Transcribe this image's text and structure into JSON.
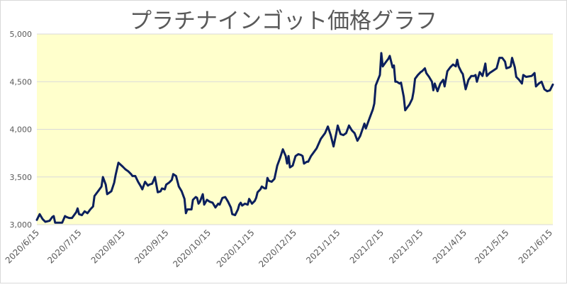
{
  "chart_data": {
    "type": "line",
    "title": "プラチナインゴット価格グラフ",
    "xlabel": "",
    "ylabel": "",
    "ylim": [
      3000,
      5000
    ],
    "y_ticks": [
      3000,
      3500,
      4000,
      4500,
      5000
    ],
    "y_tick_labels": [
      "3,000",
      "3,500",
      "4,000",
      "4,500",
      "5,000"
    ],
    "x_tick_labels": [
      "2020/6/15",
      "2020/7/15",
      "2020/8/15",
      "2020/9/15",
      "2020/10/15",
      "2020/11/15",
      "2020/12/15",
      "2021/1/15",
      "2021/2/15",
      "2021/3/15",
      "2021/4/15",
      "2021/5/15",
      "2021/6/15"
    ],
    "grid": true,
    "plot_background": "#ffffcc",
    "line_color": "#0b1f5c",
    "series": [
      {
        "values": [
          [
            "2020-06-15",
            3050
          ],
          [
            "2020-06-17",
            3110
          ],
          [
            "2020-06-19",
            3060
          ],
          [
            "2020-06-21",
            3030
          ],
          [
            "2020-06-24",
            3040
          ],
          [
            "2020-06-26",
            3080
          ],
          [
            "2020-06-27",
            3090
          ],
          [
            "2020-06-28",
            3020
          ],
          [
            "2020-07-03",
            3020
          ],
          [
            "2020-07-05",
            3090
          ],
          [
            "2020-07-06",
            3080
          ],
          [
            "2020-07-08",
            3070
          ],
          [
            "2020-07-10",
            3070
          ],
          [
            "2020-07-13",
            3130
          ],
          [
            "2020-07-14",
            3170
          ],
          [
            "2020-07-15",
            3110
          ],
          [
            "2020-07-17",
            3100
          ],
          [
            "2020-07-19",
            3140
          ],
          [
            "2020-07-20",
            3130
          ],
          [
            "2020-07-21",
            3120
          ],
          [
            "2020-07-23",
            3160
          ],
          [
            "2020-07-25",
            3190
          ],
          [
            "2020-07-26",
            3300
          ],
          [
            "2020-07-29",
            3360
          ],
          [
            "2020-07-31",
            3400
          ],
          [
            "2020-08-01",
            3500
          ],
          [
            "2020-08-03",
            3420
          ],
          [
            "2020-08-04",
            3320
          ],
          [
            "2020-08-07",
            3350
          ],
          [
            "2020-08-09",
            3440
          ],
          [
            "2020-08-10",
            3520
          ],
          [
            "2020-08-12",
            3650
          ],
          [
            "2020-08-15",
            3610
          ],
          [
            "2020-08-17",
            3580
          ],
          [
            "2020-08-19",
            3560
          ],
          [
            "2020-08-21",
            3530
          ],
          [
            "2020-08-22",
            3510
          ],
          [
            "2020-08-24",
            3510
          ],
          [
            "2020-08-26",
            3450
          ],
          [
            "2020-08-28",
            3400
          ],
          [
            "2020-08-29",
            3370
          ],
          [
            "2020-08-31",
            3450
          ],
          [
            "2020-09-02",
            3410
          ],
          [
            "2020-09-03",
            3420
          ],
          [
            "2020-09-05",
            3430
          ],
          [
            "2020-09-07",
            3500
          ],
          [
            "2020-09-09",
            3340
          ],
          [
            "2020-09-11",
            3350
          ],
          [
            "2020-09-12",
            3380
          ],
          [
            "2020-09-14",
            3370
          ],
          [
            "2020-09-15",
            3420
          ],
          [
            "2020-09-17",
            3440
          ],
          [
            "2020-09-19",
            3470
          ],
          [
            "2020-09-20",
            3530
          ],
          [
            "2020-09-22",
            3510
          ],
          [
            "2020-09-24",
            3400
          ],
          [
            "2020-09-26",
            3350
          ],
          [
            "2020-09-28",
            3270
          ],
          [
            "2020-09-29",
            3120
          ],
          [
            "2020-09-30",
            3160
          ],
          [
            "2020-10-03",
            3160
          ],
          [
            "2020-10-04",
            3260
          ],
          [
            "2020-10-06",
            3290
          ],
          [
            "2020-10-07",
            3280
          ],
          [
            "2020-10-08",
            3220
          ],
          [
            "2020-10-09",
            3240
          ],
          [
            "2020-10-11",
            3320
          ],
          [
            "2020-10-12",
            3210
          ],
          [
            "2020-10-14",
            3260
          ],
          [
            "2020-10-16",
            3240
          ],
          [
            "2020-10-18",
            3230
          ],
          [
            "2020-10-20",
            3180
          ],
          [
            "2020-10-22",
            3220
          ],
          [
            "2020-10-23",
            3210
          ],
          [
            "2020-10-25",
            3280
          ],
          [
            "2020-10-27",
            3290
          ],
          [
            "2020-10-29",
            3240
          ],
          [
            "2020-10-31",
            3180
          ],
          [
            "2020-11-01",
            3110
          ],
          [
            "2020-11-03",
            3100
          ],
          [
            "2020-11-05",
            3160
          ],
          [
            "2020-11-06",
            3210
          ],
          [
            "2020-11-07",
            3230
          ],
          [
            "2020-11-08",
            3200
          ],
          [
            "2020-11-10",
            3220
          ],
          [
            "2020-11-12",
            3210
          ],
          [
            "2020-11-13",
            3270
          ],
          [
            "2020-11-15",
            3220
          ],
          [
            "2020-11-17",
            3250
          ],
          [
            "2020-11-18",
            3280
          ],
          [
            "2020-11-19",
            3340
          ],
          [
            "2020-11-21",
            3370
          ],
          [
            "2020-11-22",
            3400
          ],
          [
            "2020-11-24",
            3380
          ],
          [
            "2020-11-25",
            3380
          ],
          [
            "2020-11-26",
            3490
          ],
          [
            "2020-11-27",
            3460
          ],
          [
            "2020-11-29",
            3450
          ],
          [
            "2020-12-01",
            3480
          ],
          [
            "2020-12-03",
            3620
          ],
          [
            "2020-12-05",
            3700
          ],
          [
            "2020-12-07",
            3790
          ],
          [
            "2020-12-09",
            3720
          ],
          [
            "2020-12-10",
            3640
          ],
          [
            "2020-12-11",
            3720
          ],
          [
            "2020-12-12",
            3600
          ],
          [
            "2020-12-14",
            3620
          ],
          [
            "2020-12-16",
            3720
          ],
          [
            "2020-12-18",
            3740
          ],
          [
            "2020-12-20",
            3730
          ],
          [
            "2020-12-21",
            3720
          ],
          [
            "2020-12-22",
            3640
          ],
          [
            "2020-12-24",
            3660
          ],
          [
            "2020-12-25",
            3660
          ],
          [
            "2020-12-27",
            3720
          ],
          [
            "2020-12-31",
            3800
          ],
          [
            "2021-01-03",
            3900
          ],
          [
            "2021-01-06",
            3960
          ],
          [
            "2021-01-08",
            4030
          ],
          [
            "2021-01-10",
            3940
          ],
          [
            "2021-01-12",
            3820
          ],
          [
            "2021-01-14",
            3960
          ],
          [
            "2021-01-15",
            4040
          ],
          [
            "2021-01-17",
            3950
          ],
          [
            "2021-01-19",
            3940
          ],
          [
            "2021-01-21",
            3960
          ],
          [
            "2021-01-23",
            4040
          ],
          [
            "2021-01-25",
            3990
          ],
          [
            "2021-01-27",
            3960
          ],
          [
            "2021-01-29",
            3880
          ],
          [
            "2021-01-31",
            3930
          ],
          [
            "2021-02-03",
            4060
          ],
          [
            "2021-02-04",
            4010
          ],
          [
            "2021-02-06",
            4090
          ],
          [
            "2021-02-09",
            4210
          ],
          [
            "2021-02-10",
            4270
          ],
          [
            "2021-02-11",
            4460
          ],
          [
            "2021-02-14",
            4570
          ],
          [
            "2021-02-15",
            4800
          ],
          [
            "2021-02-16",
            4660
          ],
          [
            "2021-02-18",
            4700
          ],
          [
            "2021-02-20",
            4740
          ],
          [
            "2021-02-21",
            4770
          ],
          [
            "2021-02-23",
            4650
          ],
          [
            "2021-02-24",
            4670
          ],
          [
            "2021-02-25",
            4500
          ],
          [
            "2021-02-26",
            4500
          ],
          [
            "2021-02-28",
            4480
          ],
          [
            "2021-03-01",
            4490
          ],
          [
            "2021-03-03",
            4340
          ],
          [
            "2021-03-04",
            4200
          ],
          [
            "2021-03-07",
            4260
          ],
          [
            "2021-03-09",
            4320
          ],
          [
            "2021-03-10",
            4400
          ],
          [
            "2021-03-11",
            4530
          ],
          [
            "2021-03-13",
            4570
          ],
          [
            "2021-03-15",
            4600
          ],
          [
            "2021-03-16",
            4610
          ],
          [
            "2021-03-18",
            4640
          ],
          [
            "2021-03-19",
            4590
          ],
          [
            "2021-03-21",
            4550
          ],
          [
            "2021-03-23",
            4500
          ],
          [
            "2021-03-24",
            4410
          ],
          [
            "2021-03-25",
            4480
          ],
          [
            "2021-03-27",
            4400
          ],
          [
            "2021-03-29",
            4480
          ],
          [
            "2021-03-31",
            4520
          ],
          [
            "2021-04-01",
            4450
          ],
          [
            "2021-04-03",
            4610
          ],
          [
            "2021-04-05",
            4650
          ],
          [
            "2021-04-07",
            4680
          ],
          [
            "2021-04-09",
            4660
          ],
          [
            "2021-04-10",
            4730
          ],
          [
            "2021-04-11",
            4660
          ],
          [
            "2021-04-13",
            4600
          ],
          [
            "2021-04-14",
            4580
          ],
          [
            "2021-04-16",
            4420
          ],
          [
            "2021-04-18",
            4520
          ],
          [
            "2021-04-20",
            4560
          ],
          [
            "2021-04-22",
            4560
          ],
          [
            "2021-04-23",
            4570
          ],
          [
            "2021-04-24",
            4500
          ],
          [
            "2021-04-26",
            4600
          ],
          [
            "2021-04-28",
            4560
          ],
          [
            "2021-04-30",
            4690
          ],
          [
            "2021-05-01",
            4560
          ],
          [
            "2021-05-03",
            4590
          ],
          [
            "2021-05-06",
            4620
          ],
          [
            "2021-05-08",
            4640
          ],
          [
            "2021-05-10",
            4750
          ],
          [
            "2021-05-12",
            4750
          ],
          [
            "2021-05-14",
            4710
          ],
          [
            "2021-05-15",
            4640
          ],
          [
            "2021-05-17",
            4650
          ],
          [
            "2021-05-18",
            4660
          ],
          [
            "2021-05-19",
            4750
          ],
          [
            "2021-05-21",
            4650
          ],
          [
            "2021-05-22",
            4550
          ],
          [
            "2021-05-24",
            4520
          ],
          [
            "2021-05-26",
            4480
          ],
          [
            "2021-05-27",
            4570
          ],
          [
            "2021-05-29",
            4550
          ],
          [
            "2021-06-02",
            4560
          ],
          [
            "2021-06-04",
            4590
          ],
          [
            "2021-06-05",
            4450
          ],
          [
            "2021-06-07",
            4480
          ],
          [
            "2021-06-09",
            4500
          ],
          [
            "2021-06-11",
            4420
          ],
          [
            "2021-06-13",
            4400
          ],
          [
            "2021-06-15",
            4410
          ],
          [
            "2021-06-17",
            4470
          ]
        ]
      }
    ]
  }
}
